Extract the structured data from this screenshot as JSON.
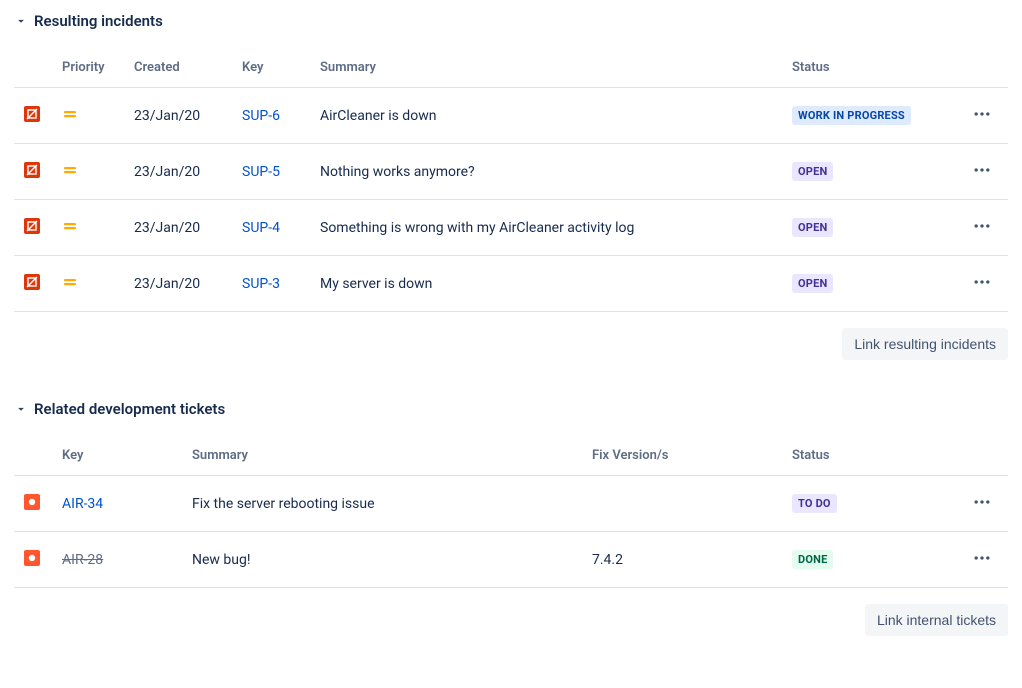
{
  "panels": {
    "incidents": {
      "title": "Resulting incidents",
      "columns": {
        "priority": "Priority",
        "created": "Created",
        "key": "Key",
        "summary": "Summary",
        "status": "Status"
      },
      "rows": [
        {
          "created": "23/Jan/20",
          "key": "SUP-6",
          "summary": "AirCleaner is down",
          "status": "WORK IN PROGRESS",
          "status_kind": "inprogress"
        },
        {
          "created": "23/Jan/20",
          "key": "SUP-5",
          "summary": "Nothing works anymore?",
          "status": "OPEN",
          "status_kind": "default"
        },
        {
          "created": "23/Jan/20",
          "key": "SUP-4",
          "summary": "Something is wrong with my AirCleaner activity log",
          "status": "OPEN",
          "status_kind": "default"
        },
        {
          "created": "23/Jan/20",
          "key": "SUP-3",
          "summary": "My server is down",
          "status": "OPEN",
          "status_kind": "default"
        }
      ],
      "footer_button": "Link resulting incidents"
    },
    "dev": {
      "title": "Related development tickets",
      "columns": {
        "key": "Key",
        "summary": "Summary",
        "fix": "Fix Version/s",
        "status": "Status"
      },
      "rows": [
        {
          "key": "AIR-34",
          "summary": "Fix the server rebooting issue",
          "fix": "",
          "status": "TO DO",
          "status_kind": "default",
          "done": false
        },
        {
          "key": "AIR-28",
          "summary": "New bug!",
          "fix": "7.4.2",
          "status": "DONE",
          "status_kind": "success",
          "done": true
        }
      ],
      "footer_button": "Link internal tickets"
    }
  },
  "icons": {
    "incident_color": "#DE350B",
    "bug_color": "#FF5630",
    "priority_color": "#FFAB00"
  }
}
